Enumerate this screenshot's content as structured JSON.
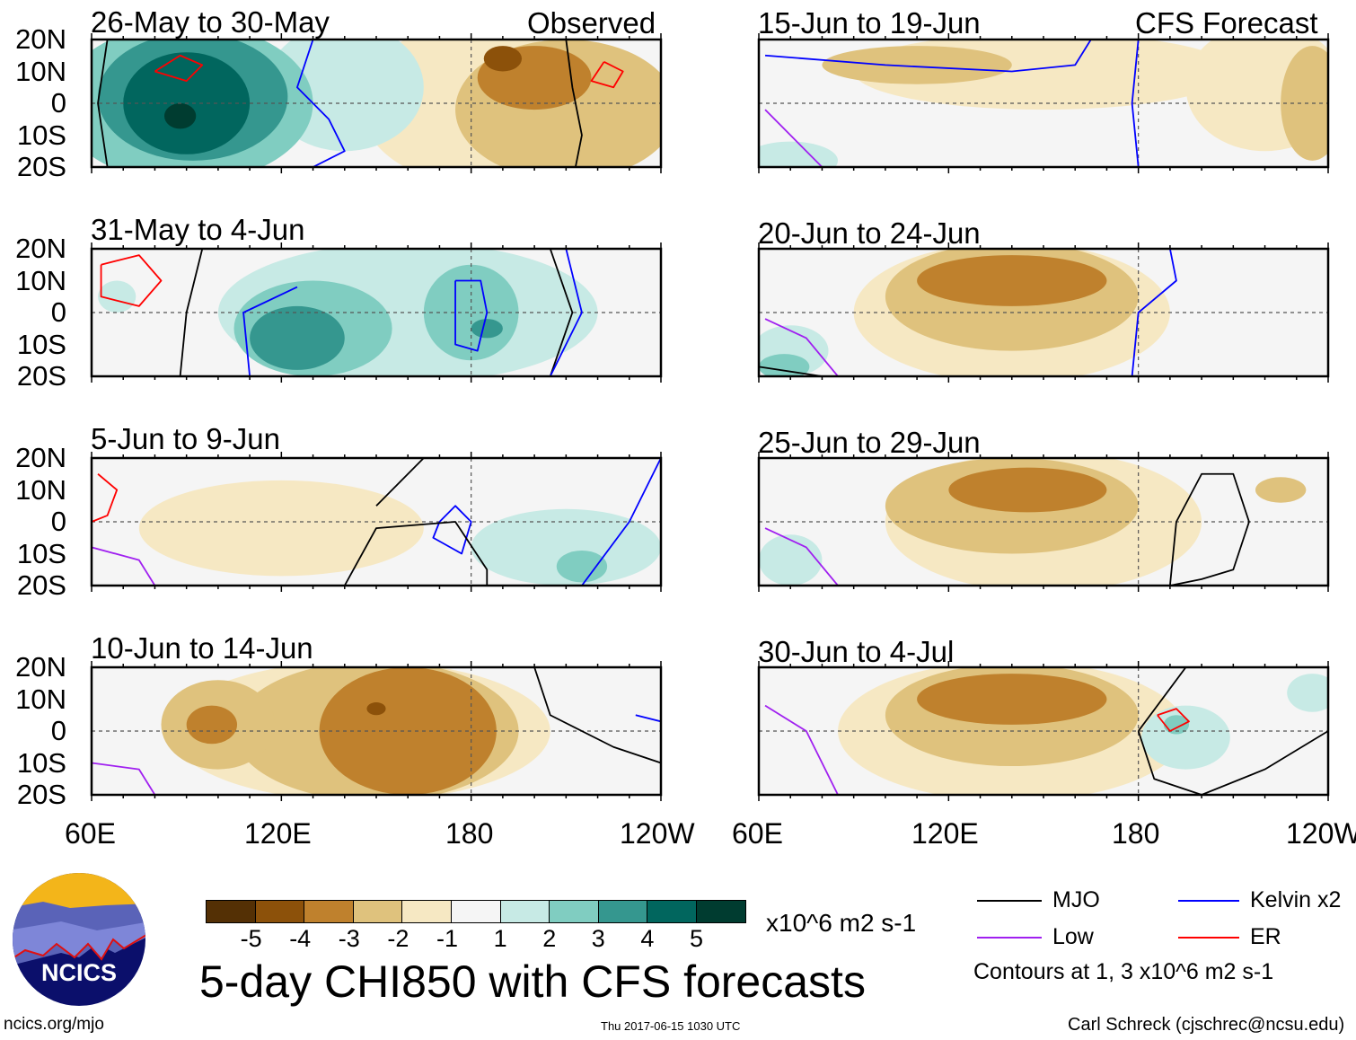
{
  "header": {
    "observed_label": "Observed",
    "forecast_label": "CFS Forecast"
  },
  "lat_labels": [
    "20N",
    "10N",
    "0",
    "10S",
    "20S"
  ],
  "lon_labels": [
    "60E",
    "120E",
    "180",
    "120W"
  ],
  "colorbar": {
    "levels": [
      "-5",
      "-4",
      "-3",
      "-2",
      "-1",
      "1",
      "2",
      "3",
      "4",
      "5"
    ],
    "colors": [
      "#543005",
      "#8c510a",
      "#bf812d",
      "#dfc27d",
      "#f6e8c3",
      "#f5f5f5",
      "#c7eae5",
      "#80cdc1",
      "#35978f",
      "#01665e",
      "#003c30"
    ],
    "units": "x10^6 m2 s-1"
  },
  "title": "5-day CHI850 with CFS forecasts",
  "timestamp": "Thu 2017-06-15 1030 UTC",
  "logo": {
    "text": "NCICS"
  },
  "footer": {
    "url": "ncics.org/mjo",
    "author": "Carl Schreck (cjschrec@ncsu.edu)"
  },
  "legend": {
    "items": [
      {
        "label": "MJO",
        "color": "#000000"
      },
      {
        "label": "Kelvin x2",
        "color": "#0000ff"
      },
      {
        "label": "Low",
        "color": "#a020f0"
      },
      {
        "label": "ER",
        "color": "#ff0000"
      }
    ],
    "note": "Contours at 1, 3 x10^6 m2 s-1"
  },
  "panels": [
    {
      "title": "26-May to 30-May",
      "features": [
        [
          180,
          0,
          35,
          25,
          -1
        ],
        [
          210,
          -2,
          35,
          22,
          -2
        ],
        [
          200,
          8,
          18,
          10,
          -3
        ],
        [
          190,
          14,
          6,
          4,
          -4
        ],
        [
          140,
          5,
          25,
          20,
          1
        ],
        [
          90,
          0,
          40,
          25,
          2
        ],
        [
          92,
          2,
          30,
          20,
          3
        ],
        [
          90,
          0,
          20,
          16,
          4
        ],
        [
          88,
          -4,
          5,
          4,
          5
        ]
      ],
      "contours": [
        [
          "#ff0000",
          [
            [
              80,
              10
            ],
            [
              88,
              15
            ],
            [
              95,
              12
            ],
            [
              90,
              7
            ],
            [
              80,
              10
            ]
          ]
        ],
        [
          "#ff0000",
          [
            [
              222,
              13
            ],
            [
              228,
              10
            ],
            [
              225,
              5
            ],
            [
              218,
              7
            ],
            [
              222,
              13
            ]
          ]
        ],
        [
          "#0000ff",
          [
            [
              130,
              20
            ],
            [
              125,
              5
            ],
            [
              135,
              -5
            ],
            [
              140,
              -15
            ],
            [
              130,
              -20
            ]
          ]
        ],
        [
          "#000000",
          [
            [
              210,
              20
            ],
            [
              212,
              5
            ],
            [
              215,
              -10
            ],
            [
              213,
              -20
            ]
          ]
        ],
        [
          "#000000",
          [
            [
              65,
              20
            ],
            [
              62,
              0
            ],
            [
              65,
              -20
            ]
          ]
        ]
      ]
    },
    {
      "title": "15-Jun to 19-Jun",
      "features": [
        [
          150,
          10,
          60,
          12,
          -1
        ],
        [
          110,
          12,
          30,
          6,
          -2
        ],
        [
          220,
          5,
          25,
          20,
          -1
        ],
        [
          235,
          0,
          10,
          18,
          -2
        ],
        [
          70,
          -18,
          15,
          6,
          1
        ]
      ],
      "contours": [
        [
          "#0000ff",
          [
            [
              62,
              15
            ],
            [
              100,
              12
            ],
            [
              140,
              10
            ],
            [
              160,
              12
            ],
            [
              165,
              20
            ]
          ]
        ],
        [
          "#0000ff",
          [
            [
              180,
              20
            ],
            [
              178,
              0
            ],
            [
              180,
              -20
            ]
          ]
        ],
        [
          "#a020f0",
          [
            [
              62,
              -2
            ],
            [
              70,
              -10
            ],
            [
              80,
              -20
            ]
          ]
        ]
      ]
    },
    {
      "title": "31-May to 4-Jun",
      "features": [
        [
          160,
          0,
          60,
          22,
          1
        ],
        [
          130,
          -5,
          25,
          15,
          2
        ],
        [
          125,
          -8,
          15,
          10,
          3
        ],
        [
          180,
          0,
          15,
          15,
          2
        ],
        [
          185,
          -5,
          5,
          3,
          3
        ],
        [
          68,
          5,
          6,
          5,
          1
        ]
      ],
      "contours": [
        [
          "#ff0000",
          [
            [
              63,
              15
            ],
            [
              75,
              18
            ],
            [
              82,
              10
            ],
            [
              75,
              2
            ],
            [
              63,
              5
            ],
            [
              63,
              15
            ]
          ]
        ],
        [
          "#0000ff",
          [
            [
              175,
              10
            ],
            [
              183,
              10
            ],
            [
              185,
              0
            ],
            [
              182,
              -12
            ],
            [
              175,
              -10
            ],
            [
              175,
              10
            ]
          ]
        ],
        [
          "#000000",
          [
            [
              95,
              20
            ],
            [
              90,
              0
            ],
            [
              88,
              -20
            ]
          ]
        ],
        [
          "#000000",
          [
            [
              205,
              20
            ],
            [
              212,
              0
            ],
            [
              205,
              -20
            ]
          ]
        ],
        [
          "#0000ff",
          [
            [
              210,
              20
            ],
            [
              215,
              0
            ],
            [
              205,
              -20
            ]
          ]
        ],
        [
          "#0000ff",
          [
            [
              110,
              -20
            ],
            [
              108,
              0
            ],
            [
              125,
              8
            ]
          ]
        ]
      ]
    },
    {
      "title": "20-Jun to 24-Jun",
      "features": [
        [
          140,
          0,
          50,
          22,
          -1
        ],
        [
          140,
          5,
          40,
          17,
          -2
        ],
        [
          140,
          10,
          30,
          8,
          -3
        ],
        [
          70,
          -12,
          12,
          8,
          1
        ],
        [
          68,
          -17,
          8,
          4,
          2
        ]
      ],
      "contours": [
        [
          "#0000ff",
          [
            [
              190,
              20
            ],
            [
              192,
              10
            ],
            [
              180,
              0
            ],
            [
              178,
              -20
            ]
          ]
        ],
        [
          "#a020f0",
          [
            [
              62,
              -2
            ],
            [
              75,
              -8
            ],
            [
              85,
              -20
            ]
          ]
        ],
        [
          "#000000",
          [
            [
              60,
              -17
            ],
            [
              80,
              -20
            ]
          ]
        ]
      ]
    },
    {
      "title": "5-Jun to 9-Jun",
      "features": [
        [
          120,
          -2,
          45,
          15,
          -1
        ],
        [
          210,
          -8,
          30,
          12,
          1
        ],
        [
          215,
          -14,
          8,
          5,
          2
        ]
      ],
      "contours": [
        [
          "#0000ff",
          [
            [
              170,
              0
            ],
            [
              175,
              5
            ],
            [
              180,
              0
            ],
            [
              177,
              -10
            ],
            [
              168,
              -5
            ],
            [
              170,
              0
            ]
          ]
        ],
        [
          "#000000",
          [
            [
              140,
              -20
            ],
            [
              150,
              -2
            ],
            [
              175,
              0
            ],
            [
              185,
              -15
            ],
            [
              185,
              -20
            ]
          ]
        ],
        [
          "#000000",
          [
            [
              165,
              20
            ],
            [
              150,
              5
            ]
          ]
        ],
        [
          "#ff0000",
          [
            [
              62,
              15
            ],
            [
              68,
              10
            ],
            [
              65,
              2
            ],
            [
              60,
              0
            ]
          ]
        ],
        [
          "#0000ff",
          [
            [
              240,
              20
            ],
            [
              230,
              0
            ],
            [
              215,
              -20
            ]
          ]
        ],
        [
          "#a020f0",
          [
            [
              60,
              -8
            ],
            [
              75,
              -12
            ],
            [
              80,
              -20
            ]
          ]
        ]
      ]
    },
    {
      "title": "25-Jun to 29-Jun",
      "features": [
        [
          150,
          0,
          50,
          22,
          -1
        ],
        [
          140,
          5,
          40,
          15,
          -2
        ],
        [
          145,
          10,
          25,
          7,
          -3
        ],
        [
          225,
          10,
          8,
          4,
          -2
        ],
        [
          70,
          -12,
          10,
          8,
          1
        ]
      ],
      "contours": [
        [
          "#000000",
          [
            [
              190,
              -20
            ],
            [
              192,
              0
            ],
            [
              200,
              15
            ],
            [
              210,
              15
            ],
            [
              215,
              0
            ],
            [
              210,
              -15
            ],
            [
              200,
              -18
            ],
            [
              190,
              -20
            ]
          ]
        ],
        [
          "#a020f0",
          [
            [
              62,
              -2
            ],
            [
              75,
              -8
            ],
            [
              85,
              -20
            ]
          ]
        ]
      ]
    },
    {
      "title": "10-Jun to 14-Jun",
      "features": [
        [
          145,
          0,
          60,
          22,
          -1
        ],
        [
          150,
          0,
          45,
          22,
          -2
        ],
        [
          160,
          0,
          28,
          20,
          -3
        ],
        [
          100,
          2,
          18,
          14,
          -2
        ],
        [
          98,
          2,
          8,
          6,
          -3
        ],
        [
          150,
          7,
          3,
          2,
          -4
        ]
      ],
      "contours": [
        [
          "#000000",
          [
            [
              200,
              20
            ],
            [
              205,
              5
            ],
            [
              225,
              -5
            ],
            [
              240,
              -10
            ]
          ]
        ],
        [
          "#0000ff",
          [
            [
              232,
              5
            ],
            [
              240,
              3
            ]
          ]
        ],
        [
          "#a020f0",
          [
            [
              60,
              -10
            ],
            [
              75,
              -12
            ],
            [
              80,
              -20
            ]
          ]
        ]
      ]
    },
    {
      "title": "30-Jun to 4-Jul",
      "features": [
        [
          140,
          0,
          55,
          22,
          -1
        ],
        [
          140,
          5,
          40,
          16,
          -2
        ],
        [
          140,
          10,
          30,
          8,
          -3
        ],
        [
          195,
          -2,
          14,
          10,
          1
        ],
        [
          192,
          2,
          4,
          3,
          2
        ],
        [
          235,
          12,
          8,
          6,
          1
        ]
      ],
      "contours": [
        [
          "#000000",
          [
            [
              180,
              0
            ],
            [
              195,
              20
            ]
          ]
        ],
        [
          "#000000",
          [
            [
              180,
              0
            ],
            [
              185,
              -15
            ],
            [
              200,
              -20
            ],
            [
              220,
              -12
            ],
            [
              240,
              0
            ]
          ]
        ],
        [
          "#ff0000",
          [
            [
              186,
              5
            ],
            [
              192,
              7
            ],
            [
              196,
              3
            ],
            [
              190,
              0
            ],
            [
              186,
              5
            ]
          ]
        ],
        [
          "#a020f0",
          [
            [
              62,
              8
            ],
            [
              75,
              0
            ],
            [
              85,
              -20
            ]
          ]
        ]
      ]
    }
  ]
}
